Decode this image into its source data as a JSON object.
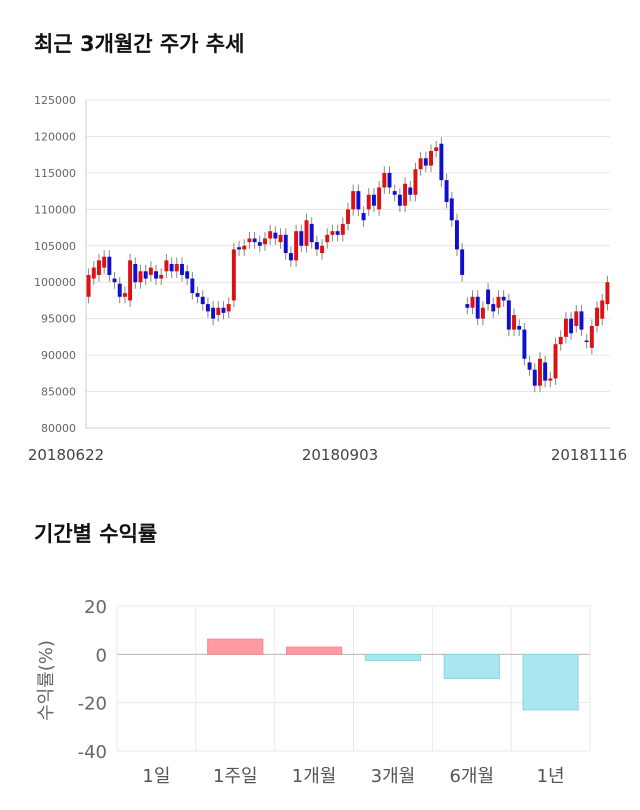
{
  "sections": {
    "stock_title": "최근 3개월간 주가 추세",
    "returns_title": "기간별 수익률"
  },
  "chart_data": [
    {
      "type": "candlestick",
      "title": "최근 3개월간 주가 추세",
      "ylim": [
        80000,
        125000
      ],
      "y_ticks": [
        "125000",
        "120000",
        "115000",
        "110000",
        "105000",
        "100000",
        "95000",
        "90000",
        "85000",
        "80000"
      ],
      "x_tick_labels": [
        "20180622",
        "20180903",
        "20181116"
      ],
      "up_color": "#dd1111",
      "down_color": "#1010cc",
      "candles": [
        [
          98000,
          101000
        ],
        [
          100500,
          102000
        ],
        [
          101000,
          103000
        ],
        [
          102000,
          103500
        ],
        [
          103500,
          101000
        ],
        [
          100500,
          100000
        ],
        [
          99800,
          98000
        ],
        [
          98000,
          98500
        ],
        [
          97500,
          103000
        ],
        [
          102500,
          100000
        ],
        [
          100000,
          101500
        ],
        [
          101500,
          100500
        ],
        [
          101000,
          102000
        ],
        [
          101500,
          100500
        ],
        [
          100500,
          101000
        ],
        [
          101500,
          103000
        ],
        [
          102500,
          101500
        ],
        [
          101500,
          102500
        ],
        [
          102500,
          101000
        ],
        [
          101500,
          100500
        ],
        [
          100500,
          98500
        ],
        [
          98500,
          98000
        ],
        [
          98000,
          97000
        ],
        [
          97000,
          96000
        ],
        [
          96500,
          95000
        ],
        [
          95500,
          96500
        ],
        [
          96500,
          95800
        ],
        [
          96000,
          97000
        ],
        [
          97500,
          104500
        ],
        [
          104800,
          104500
        ],
        [
          104500,
          105000
        ],
        [
          105500,
          106000
        ],
        [
          106000,
          105500
        ],
        [
          105500,
          105000
        ],
        [
          105200,
          106000
        ],
        [
          106000,
          107000
        ],
        [
          106800,
          106000
        ],
        [
          105500,
          106500
        ],
        [
          106500,
          104000
        ],
        [
          104000,
          103000
        ],
        [
          103000,
          107000
        ],
        [
          107000,
          105000
        ],
        [
          105000,
          108500
        ],
        [
          108000,
          105500
        ],
        [
          105500,
          104500
        ],
        [
          104000,
          105000
        ],
        [
          105500,
          106500
        ],
        [
          106500,
          107000
        ],
        [
          107000,
          106500
        ],
        [
          106500,
          108000
        ],
        [
          108000,
          110000
        ],
        [
          110000,
          112500
        ],
        [
          112500,
          110000
        ],
        [
          109500,
          108500
        ],
        [
          110000,
          112000
        ],
        [
          112000,
          110500
        ],
        [
          110000,
          113000
        ],
        [
          113000,
          115000
        ],
        [
          115000,
          113000
        ],
        [
          112500,
          112000
        ],
        [
          112000,
          110500
        ],
        [
          110500,
          113500
        ],
        [
          113000,
          112000
        ],
        [
          112000,
          115500
        ],
        [
          115500,
          117000
        ],
        [
          117000,
          116000
        ],
        [
          116000,
          118000
        ],
        [
          118000,
          118500
        ],
        [
          119000,
          114000
        ],
        [
          114000,
          111000
        ],
        [
          111500,
          108500
        ],
        [
          108500,
          104500
        ],
        [
          104500,
          101000
        ],
        [
          97000,
          96500
        ],
        [
          96500,
          98000
        ],
        [
          98000,
          95000
        ],
        [
          95000,
          96500
        ],
        [
          99000,
          97000
        ],
        [
          97000,
          96000
        ],
        [
          96500,
          98000
        ],
        [
          98000,
          97500
        ],
        [
          97500,
          93500
        ],
        [
          93500,
          95500
        ],
        [
          94000,
          93500
        ],
        [
          93500,
          89500
        ],
        [
          89000,
          88000
        ],
        [
          88000,
          85800
        ],
        [
          85800,
          89500
        ],
        [
          89000,
          86500
        ],
        [
          86500,
          86800
        ],
        [
          86800,
          91500
        ],
        [
          91500,
          92500
        ],
        [
          92500,
          95000
        ],
        [
          95000,
          93000
        ],
        [
          94000,
          96000
        ],
        [
          96000,
          93500
        ],
        [
          92000,
          91800
        ],
        [
          91000,
          94000
        ],
        [
          94000,
          96500
        ],
        [
          95000,
          97500
        ],
        [
          97000,
          100000
        ]
      ]
    },
    {
      "type": "bar",
      "title": "기간별 수익률",
      "ylabel": "수익률(%)",
      "ylim": [
        -40,
        20
      ],
      "y_ticks": [
        20,
        0,
        -20,
        -40
      ],
      "categories": [
        "1일",
        "1주일",
        "1개월",
        "3개월",
        "6개월",
        "1년"
      ],
      "values": [
        0,
        6.3,
        3,
        -2.5,
        -10,
        -23
      ],
      "positive_color": "#ff9aa0",
      "negative_color": "#a9e6f0",
      "grid": true
    }
  ]
}
